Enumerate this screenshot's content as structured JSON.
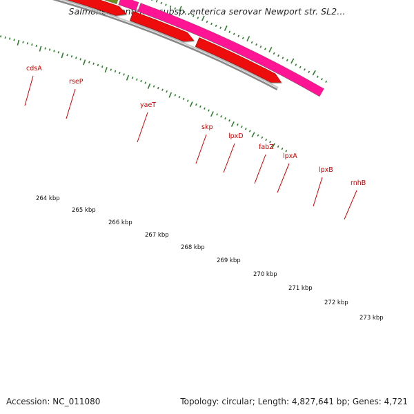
{
  "title": "Salmonella enterica subsp. enterica serovar Newport str. SL2...",
  "footer": {
    "accession": "Accession: NC_011080",
    "summary": "Topology: circular; Length: 4,827,641 bp; Genes: 4,721"
  },
  "colors": {
    "gene_label": "#cc0000",
    "cds_arrow": "#ee1111",
    "feature_green": "#6b8e23",
    "feature_purple": "#7b68ee",
    "feature_magenta": "#ff1493",
    "tick": "#2e7d2e",
    "backbone": "#888888"
  },
  "genes": [
    {
      "name": "cdsA",
      "feature_color": "purple"
    },
    {
      "name": "rseP",
      "feature_color": "green"
    },
    {
      "name": "yaeT",
      "feature_color": "green"
    },
    {
      "name": "skp",
      "feature_color": "green"
    },
    {
      "name": "lpxD",
      "feature_color": "green"
    },
    {
      "name": "fabZ",
      "feature_color": "purple"
    },
    {
      "name": "lpxA",
      "feature_color": "green"
    },
    {
      "name": "lpxB",
      "feature_color": "green"
    },
    {
      "name": "rnhB",
      "feature_color": "magenta"
    }
  ],
  "scale_labels": [
    "264 kbp",
    "265 kbp",
    "266 kbp",
    "267 kbp",
    "268 kbp",
    "269 kbp",
    "270 kbp",
    "271 kbp",
    "272 kbp",
    "273 kbp"
  ]
}
